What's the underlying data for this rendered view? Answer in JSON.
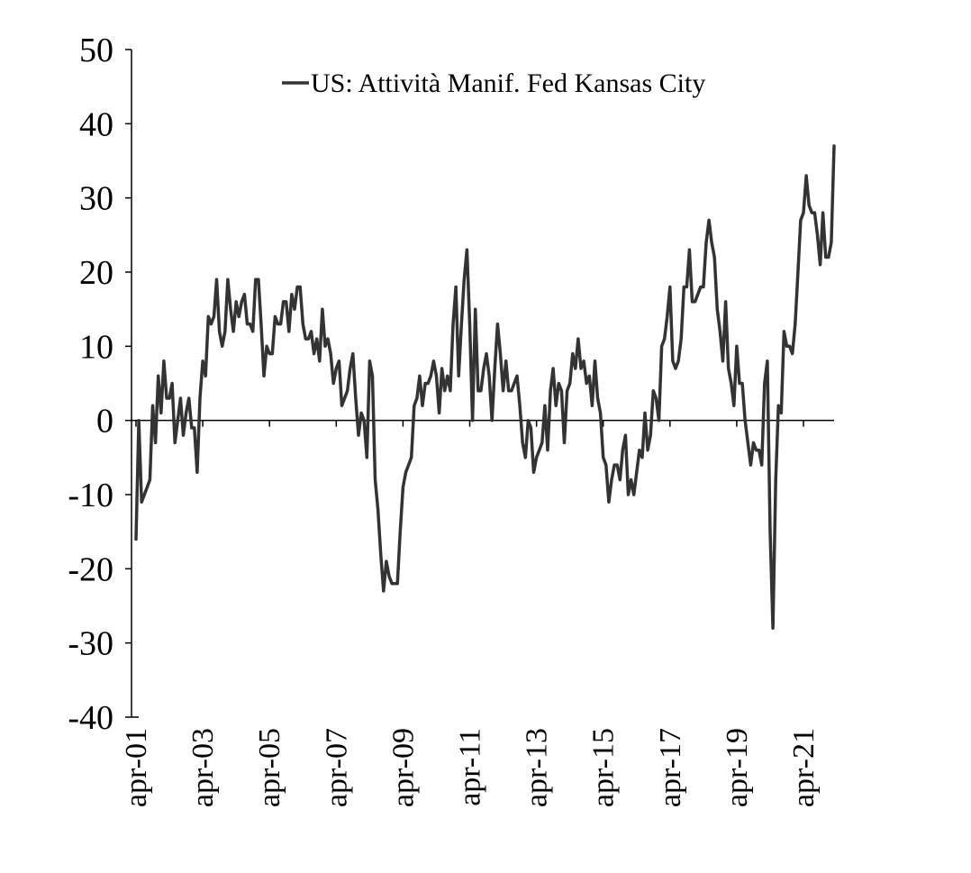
{
  "chart_data": {
    "type": "line",
    "title": "",
    "xlabel": "",
    "ylabel": "",
    "ylim": [
      -40,
      50
    ],
    "yticks": [
      50,
      40,
      30,
      20,
      10,
      0,
      -10,
      -20,
      -30,
      -40
    ],
    "ytick_labels": [
      "50",
      "40",
      "30",
      "20",
      "10",
      "0",
      "-10",
      "-20",
      "-30",
      "-40"
    ],
    "xlim": [
      "2001-04",
      "2022-03"
    ],
    "xtick_labels": [
      "apr-01",
      "apr-03",
      "apr-05",
      "apr-07",
      "apr-09",
      "apr-11",
      "apr-13",
      "apr-15",
      "apr-17",
      "apr-19",
      "apr-21"
    ],
    "legend": {
      "position": "top-center",
      "entries": [
        "US: Attività Manif. Fed Kansas City"
      ]
    },
    "grid": false,
    "colors": {
      "line": "#333333",
      "axis": "#000000"
    },
    "series": [
      {
        "name": "US: Attività Manif. Fed Kansas City",
        "points": [
          [
            "2001-04",
            -16
          ],
          [
            "2001-05",
            0
          ],
          [
            "2001-06",
            -11
          ],
          [
            "2001-07",
            -10
          ],
          [
            "2001-08",
            -9
          ],
          [
            "2001-09",
            -8
          ],
          [
            "2001-10",
            2
          ],
          [
            "2001-11",
            -3
          ],
          [
            "2001-12",
            6
          ],
          [
            "2002-01",
            1
          ],
          [
            "2002-02",
            8
          ],
          [
            "2002-03",
            3
          ],
          [
            "2002-04",
            3
          ],
          [
            "2002-05",
            5
          ],
          [
            "2002-06",
            -3
          ],
          [
            "2002-07",
            0
          ],
          [
            "2002-08",
            3
          ],
          [
            "2002-09",
            -2
          ],
          [
            "2002-10",
            1
          ],
          [
            "2002-11",
            3
          ],
          [
            "2002-12",
            -1
          ],
          [
            "2003-01",
            -1
          ],
          [
            "2003-02",
            -7
          ],
          [
            "2003-03",
            3
          ],
          [
            "2003-04",
            8
          ],
          [
            "2003-05",
            6
          ],
          [
            "2003-06",
            14
          ],
          [
            "2003-07",
            13
          ],
          [
            "2003-08",
            14
          ],
          [
            "2003-09",
            19
          ],
          [
            "2003-10",
            12
          ],
          [
            "2003-11",
            10
          ],
          [
            "2003-12",
            12
          ],
          [
            "2004-01",
            19
          ],
          [
            "2004-02",
            15
          ],
          [
            "2004-03",
            12
          ],
          [
            "2004-04",
            16
          ],
          [
            "2004-05",
            14
          ],
          [
            "2004-06",
            16
          ],
          [
            "2004-07",
            17
          ],
          [
            "2004-08",
            13
          ],
          [
            "2004-09",
            13
          ],
          [
            "2004-10",
            12
          ],
          [
            "2004-11",
            19
          ],
          [
            "2004-12",
            19
          ],
          [
            "2005-01",
            13
          ],
          [
            "2005-02",
            6
          ],
          [
            "2005-03",
            10
          ],
          [
            "2005-04",
            9
          ],
          [
            "2005-05",
            9
          ],
          [
            "2005-06",
            14
          ],
          [
            "2005-07",
            13
          ],
          [
            "2005-08",
            13
          ],
          [
            "2005-09",
            16
          ],
          [
            "2005-10",
            16
          ],
          [
            "2005-11",
            12
          ],
          [
            "2005-12",
            17
          ],
          [
            "2006-01",
            15
          ],
          [
            "2006-02",
            18
          ],
          [
            "2006-03",
            18
          ],
          [
            "2006-04",
            13
          ],
          [
            "2006-05",
            11
          ],
          [
            "2006-06",
            11
          ],
          [
            "2006-07",
            12
          ],
          [
            "2006-08",
            9
          ],
          [
            "2006-09",
            11
          ],
          [
            "2006-10",
            8
          ],
          [
            "2006-11",
            15
          ],
          [
            "2006-12",
            10
          ],
          [
            "2007-01",
            11
          ],
          [
            "2007-02",
            9
          ],
          [
            "2007-03",
            5
          ],
          [
            "2007-04",
            7
          ],
          [
            "2007-05",
            8
          ],
          [
            "2007-06",
            2
          ],
          [
            "2007-07",
            3
          ],
          [
            "2007-08",
            4
          ],
          [
            "2007-09",
            7
          ],
          [
            "2007-10",
            9
          ],
          [
            "2007-11",
            3
          ],
          [
            "2007-12",
            -2
          ],
          [
            "2008-01",
            1
          ],
          [
            "2008-02",
            0
          ],
          [
            "2008-03",
            -5
          ],
          [
            "2008-04",
            8
          ],
          [
            "2008-05",
            6
          ],
          [
            "2008-06",
            -8
          ],
          [
            "2008-07",
            -12
          ],
          [
            "2008-08",
            -18
          ],
          [
            "2008-09",
            -23
          ],
          [
            "2008-10",
            -19
          ],
          [
            "2008-11",
            -21
          ],
          [
            "2008-12",
            -22
          ],
          [
            "2009-01",
            -22
          ],
          [
            "2009-02",
            -22
          ],
          [
            "2009-03",
            -15
          ],
          [
            "2009-04",
            -9
          ],
          [
            "2009-05",
            -7
          ],
          [
            "2009-06",
            -6
          ],
          [
            "2009-07",
            -5
          ],
          [
            "2009-08",
            2
          ],
          [
            "2009-09",
            3
          ],
          [
            "2009-10",
            6
          ],
          [
            "2009-11",
            2
          ],
          [
            "2009-12",
            5
          ],
          [
            "2010-01",
            5
          ],
          [
            "2010-02",
            6
          ],
          [
            "2010-03",
            8
          ],
          [
            "2010-04",
            6
          ],
          [
            "2010-05",
            1
          ],
          [
            "2010-06",
            7
          ],
          [
            "2010-07",
            4
          ],
          [
            "2010-08",
            6
          ],
          [
            "2010-09",
            4
          ],
          [
            "2010-10",
            13
          ],
          [
            "2010-11",
            18
          ],
          [
            "2010-12",
            6
          ],
          [
            "2011-01",
            13
          ],
          [
            "2011-02",
            19
          ],
          [
            "2011-03",
            23
          ],
          [
            "2011-04",
            13
          ],
          [
            "2011-05",
            0
          ],
          [
            "2011-06",
            15
          ],
          [
            "2011-07",
            4
          ],
          [
            "2011-08",
            4
          ],
          [
            "2011-09",
            7
          ],
          [
            "2011-10",
            9
          ],
          [
            "2011-11",
            6
          ],
          [
            "2011-12",
            0
          ],
          [
            "2012-01",
            7
          ],
          [
            "2012-02",
            13
          ],
          [
            "2012-03",
            9
          ],
          [
            "2012-04",
            4
          ],
          [
            "2012-05",
            8
          ],
          [
            "2012-06",
            4
          ],
          [
            "2012-07",
            4
          ],
          [
            "2012-08",
            5
          ],
          [
            "2012-09",
            6
          ],
          [
            "2012-10",
            2
          ],
          [
            "2012-11",
            -3
          ],
          [
            "2012-12",
            -5
          ],
          [
            "2013-01",
            0
          ],
          [
            "2013-02",
            -1
          ],
          [
            "2013-03",
            -7
          ],
          [
            "2013-04",
            -5
          ],
          [
            "2013-05",
            -4
          ],
          [
            "2013-06",
            -3
          ],
          [
            "2013-07",
            2
          ],
          [
            "2013-08",
            -4
          ],
          [
            "2013-09",
            4
          ],
          [
            "2013-10",
            7
          ],
          [
            "2013-11",
            2
          ],
          [
            "2013-12",
            5
          ],
          [
            "2014-01",
            4
          ],
          [
            "2014-02",
            -3
          ],
          [
            "2014-03",
            4
          ],
          [
            "2014-04",
            5
          ],
          [
            "2014-05",
            9
          ],
          [
            "2014-06",
            7
          ],
          [
            "2014-07",
            11
          ],
          [
            "2014-08",
            7
          ],
          [
            "2014-09",
            8
          ],
          [
            "2014-10",
            5
          ],
          [
            "2014-11",
            6
          ],
          [
            "2014-12",
            2
          ],
          [
            "2015-01",
            8
          ],
          [
            "2015-02",
            3
          ],
          [
            "2015-03",
            1
          ],
          [
            "2015-04",
            -5
          ],
          [
            "2015-05",
            -6
          ],
          [
            "2015-06",
            -11
          ],
          [
            "2015-07",
            -8
          ],
          [
            "2015-08",
            -6
          ],
          [
            "2015-09",
            -6
          ],
          [
            "2015-10",
            -8
          ],
          [
            "2015-11",
            -4
          ],
          [
            "2015-12",
            -2
          ],
          [
            "2016-01",
            -10
          ],
          [
            "2016-02",
            -8
          ],
          [
            "2016-03",
            -10
          ],
          [
            "2016-04",
            -7
          ],
          [
            "2016-05",
            -4
          ],
          [
            "2016-06",
            -5
          ],
          [
            "2016-07",
            1
          ],
          [
            "2016-08",
            -4
          ],
          [
            "2016-09",
            -2
          ],
          [
            "2016-10",
            4
          ],
          [
            "2016-11",
            3
          ],
          [
            "2016-12",
            0
          ],
          [
            "2017-01",
            10
          ],
          [
            "2017-02",
            11
          ],
          [
            "2017-03",
            14
          ],
          [
            "2017-04",
            18
          ],
          [
            "2017-05",
            8
          ],
          [
            "2017-06",
            7
          ],
          [
            "2017-07",
            8
          ],
          [
            "2017-08",
            11
          ],
          [
            "2017-09",
            18
          ],
          [
            "2017-10",
            18
          ],
          [
            "2017-11",
            23
          ],
          [
            "2017-12",
            16
          ],
          [
            "2018-01",
            16
          ],
          [
            "2018-02",
            17
          ],
          [
            "2018-03",
            18
          ],
          [
            "2018-04",
            18
          ],
          [
            "2018-05",
            24
          ],
          [
            "2018-06",
            27
          ],
          [
            "2018-07",
            24
          ],
          [
            "2018-08",
            22
          ],
          [
            "2018-09",
            15
          ],
          [
            "2018-10",
            12
          ],
          [
            "2018-11",
            8
          ],
          [
            "2018-12",
            16
          ],
          [
            "2019-01",
            7
          ],
          [
            "2019-02",
            5
          ],
          [
            "2019-03",
            2
          ],
          [
            "2019-04",
            10
          ],
          [
            "2019-05",
            5
          ],
          [
            "2019-06",
            5
          ],
          [
            "2019-07",
            0
          ],
          [
            "2019-08",
            -3
          ],
          [
            "2019-09",
            -6
          ],
          [
            "2019-10",
            -3
          ],
          [
            "2019-11",
            -4
          ],
          [
            "2019-12",
            -4
          ],
          [
            "2020-01",
            -6
          ],
          [
            "2020-02",
            5
          ],
          [
            "2020-03",
            8
          ],
          [
            "2020-04",
            -15
          ],
          [
            "2020-05",
            -28
          ],
          [
            "2020-06",
            -8
          ],
          [
            "2020-07",
            2
          ],
          [
            "2020-08",
            1
          ],
          [
            "2020-09",
            12
          ],
          [
            "2020-10",
            10
          ],
          [
            "2020-11",
            10
          ],
          [
            "2020-12",
            9
          ],
          [
            "2021-01",
            13
          ],
          [
            "2021-02",
            20
          ],
          [
            "2021-03",
            27
          ],
          [
            "2021-04",
            28
          ],
          [
            "2021-05",
            33
          ],
          [
            "2021-06",
            29
          ],
          [
            "2021-07",
            28
          ],
          [
            "2021-08",
            28
          ],
          [
            "2021-09",
            25
          ],
          [
            "2021-10",
            21
          ],
          [
            "2021-11",
            28
          ],
          [
            "2021-12",
            22
          ],
          [
            "2022-01",
            22
          ],
          [
            "2022-02",
            24
          ],
          [
            "2022-03",
            37
          ]
        ]
      }
    ]
  }
}
